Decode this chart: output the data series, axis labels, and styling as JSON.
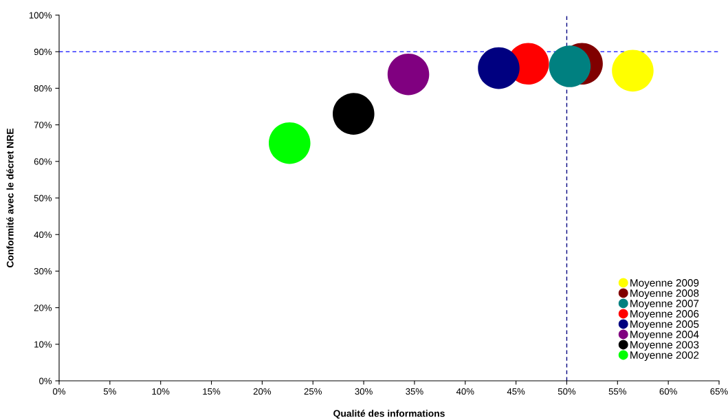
{
  "chart_data": {
    "type": "scatter",
    "xlabel": "Qualité des informations",
    "ylabel": "Conformité avec le décret NRE",
    "series": [
      {
        "name": "Moyenne 2009",
        "color": "#ffff00",
        "x": [
          56.5
        ],
        "values": [
          84.8
        ]
      },
      {
        "name": "Moyenne 2008",
        "color": "#800000",
        "x": [
          51.5
        ],
        "values": [
          86.7
        ]
      },
      {
        "name": "Moyenne 2007",
        "color": "#008080",
        "x": [
          50.3
        ],
        "values": [
          86.0
        ]
      },
      {
        "name": "Moyenne 2006",
        "color": "#ff0000",
        "x": [
          46.2
        ],
        "values": [
          86.7
        ]
      },
      {
        "name": "Moyenne 2005",
        "color": "#000080",
        "x": [
          43.3
        ],
        "values": [
          85.5
        ]
      },
      {
        "name": "Moyenne 2004",
        "color": "#800080",
        "x": [
          34.4
        ],
        "values": [
          83.8
        ]
      },
      {
        "name": "Moyenne 2003",
        "color": "#000000",
        "x": [
          29.0
        ],
        "values": [
          73.0
        ]
      },
      {
        "name": "Moyenne 2002",
        "color": "#00ff00",
        "x": [
          22.7
        ],
        "values": [
          65.0
        ]
      }
    ],
    "xlim": [
      0,
      65
    ],
    "xticks": [
      {
        "value": 0,
        "label": "0%"
      },
      {
        "value": 5,
        "label": "5%"
      },
      {
        "value": 10,
        "label": "10%"
      },
      {
        "value": 15,
        "label": "15%"
      },
      {
        "value": 20,
        "label": "20%"
      },
      {
        "value": 25,
        "label": "25%"
      },
      {
        "value": 30,
        "label": "30%"
      },
      {
        "value": 35,
        "label": "35%"
      },
      {
        "value": 40,
        "label": "40%"
      },
      {
        "value": 45,
        "label": "45%"
      },
      {
        "value": 50,
        "label": "50%"
      },
      {
        "value": 55,
        "label": "55%"
      },
      {
        "value": 60,
        "label": "60%"
      },
      {
        "value": 65,
        "label": "65%"
      }
    ],
    "ylim": [
      0,
      100
    ],
    "yticks": [
      {
        "value": 0,
        "label": "0%"
      },
      {
        "value": 10,
        "label": "10%"
      },
      {
        "value": 20,
        "label": "20%"
      },
      {
        "value": 30,
        "label": "30%"
      },
      {
        "value": 40,
        "label": "40%"
      },
      {
        "value": 50,
        "label": "50%"
      },
      {
        "value": 60,
        "label": "60%"
      },
      {
        "value": 70,
        "label": "70%"
      },
      {
        "value": 80,
        "label": "80%"
      },
      {
        "value": 90,
        "label": "90%"
      },
      {
        "value": 100,
        "label": "100%"
      }
    ],
    "ref_lines": [
      {
        "axis": "y",
        "value": 90,
        "color": "#3333ff",
        "line_style": "dashed"
      },
      {
        "axis": "x",
        "value": 50,
        "color": "#000080",
        "line_style": "dashed"
      }
    ],
    "grid": false,
    "legend": "lower right",
    "marker": "circle"
  }
}
